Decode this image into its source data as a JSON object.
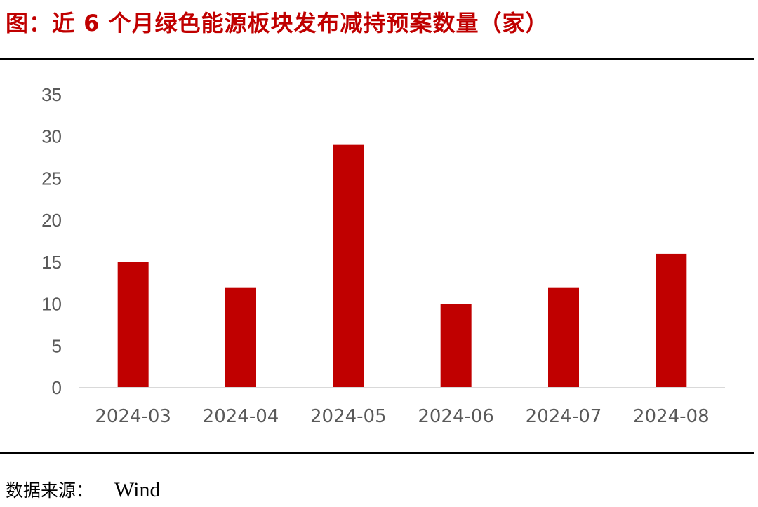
{
  "header": {
    "title": "图：近 6 个月绿色能源板块发布减持预案数量（家）"
  },
  "footer": {
    "source_label": "数据来源：",
    "source_value": "Wind"
  },
  "colors": {
    "title": "#c00000",
    "bar": "#c00000",
    "axis": "#d9d9d9",
    "tick_text": "#595959"
  },
  "chart_data": {
    "type": "bar",
    "title": "",
    "xlabel": "",
    "ylabel": "",
    "categories": [
      "2024-03",
      "2024-04",
      "2024-05",
      "2024-06",
      "2024-07",
      "2024-08"
    ],
    "values": [
      15,
      12,
      29,
      10,
      12,
      16
    ],
    "ylim": [
      0,
      35
    ],
    "yticks": [
      0,
      5,
      10,
      15,
      20,
      25,
      30,
      35
    ],
    "grid": false,
    "legend": "none"
  }
}
